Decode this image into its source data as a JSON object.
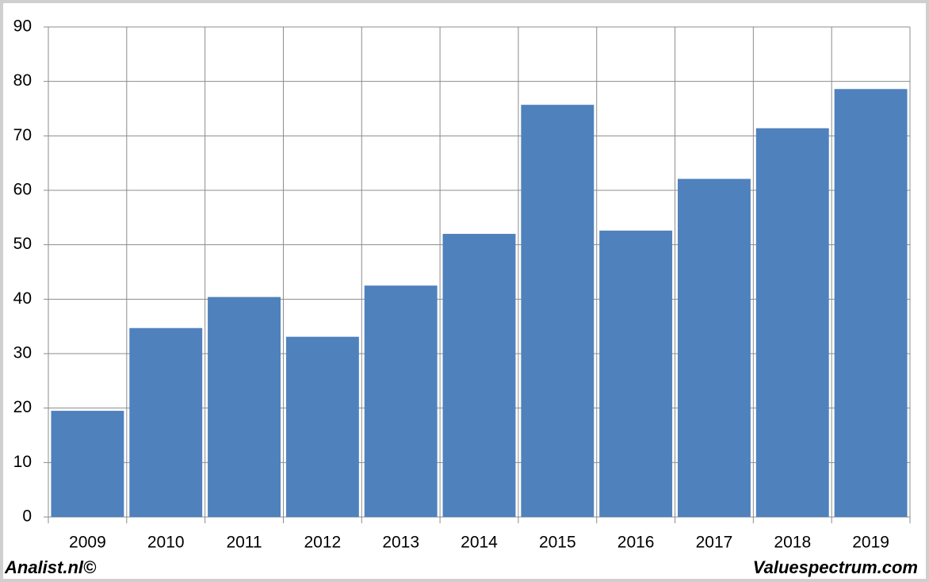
{
  "chart_data": {
    "type": "bar",
    "categories": [
      "2009",
      "2010",
      "2011",
      "2012",
      "2013",
      "2014",
      "2015",
      "2016",
      "2017",
      "2018",
      "2019"
    ],
    "values": [
      19.5,
      34.7,
      40.4,
      33.1,
      42.5,
      52.0,
      75.7,
      52.6,
      62.1,
      71.4,
      78.6
    ],
    "color": "#4f81bd",
    "ylim": [
      0,
      90
    ],
    "yticks": [
      0,
      10,
      20,
      30,
      40,
      50,
      60,
      70,
      80,
      90
    ],
    "grid": true,
    "annotations": [
      "Analist.nl©",
      "Valuespectrum.com"
    ]
  }
}
